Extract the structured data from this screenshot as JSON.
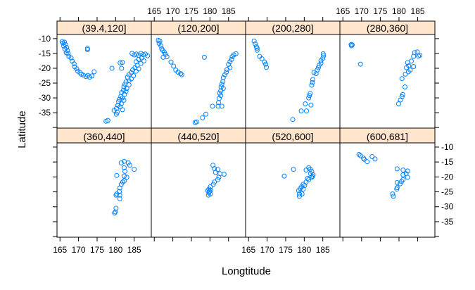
{
  "chart_data": {
    "type": "scatter",
    "title": "",
    "xlabel": "Longtitude",
    "ylabel": "Latitude",
    "xlim": [
      164.2,
      189.6
    ],
    "ylim": [
      -40.2,
      -8.6
    ],
    "xticks": [
      165,
      170,
      175,
      180,
      185
    ],
    "yticks": [
      -10,
      -15,
      -20,
      -25,
      -30,
      -35,
      -40
    ],
    "ytick_labels": [
      "-10",
      "-15",
      "-20",
      "-25",
      "-30",
      "-35",
      ""
    ],
    "point_color": "#0080ff",
    "strip_color": "#ffe5cc",
    "panels": [
      {
        "label": "(39.4,120]",
        "points": [
          [
            165.6,
            -11
          ],
          [
            165.8,
            -11.5
          ],
          [
            166.2,
            -11.2
          ],
          [
            166,
            -12.5
          ],
          [
            166.5,
            -12
          ],
          [
            166.8,
            -13
          ],
          [
            166.3,
            -13.5
          ],
          [
            167,
            -14
          ],
          [
            166.7,
            -14.8
          ],
          [
            167.2,
            -15
          ],
          [
            167.4,
            -16
          ],
          [
            168,
            -16.5
          ],
          [
            168.3,
            -17.6
          ],
          [
            168.8,
            -18.5
          ],
          [
            169,
            -19.5
          ],
          [
            169.5,
            -20.2
          ],
          [
            169.8,
            -21
          ],
          [
            170.4,
            -21.5
          ],
          [
            170.8,
            -22
          ],
          [
            171.3,
            -22.3
          ],
          [
            172,
            -22.8
          ],
          [
            172.5,
            -22.4
          ],
          [
            173,
            -23
          ],
          [
            173.6,
            -22.6
          ],
          [
            174.2,
            -21.2
          ],
          [
            172.4,
            -13.3
          ],
          [
            172.4,
            -13.7
          ],
          [
            179,
            -20
          ],
          [
            181.6,
            -20
          ],
          [
            181.2,
            -18.2
          ],
          [
            181.8,
            -18
          ],
          [
            184.4,
            -15
          ],
          [
            185,
            -15.5
          ],
          [
            185.6,
            -15.2
          ],
          [
            186.2,
            -15.6
          ],
          [
            186.8,
            -15
          ],
          [
            187.4,
            -15.4
          ],
          [
            188,
            -15.2
          ],
          [
            188.6,
            -15.8
          ],
          [
            187,
            -16.5
          ],
          [
            186.2,
            -17
          ],
          [
            185.5,
            -17.8
          ],
          [
            187.6,
            -17.5
          ],
          [
            186.8,
            -18.4
          ],
          [
            185.8,
            -19
          ],
          [
            185.2,
            -19.8
          ],
          [
            184.6,
            -20.5
          ],
          [
            186.2,
            -20.2
          ],
          [
            185.5,
            -21
          ],
          [
            184.2,
            -21.5
          ],
          [
            183.6,
            -22.2
          ],
          [
            184.8,
            -22.5
          ],
          [
            183.2,
            -23
          ],
          [
            184.2,
            -23.6
          ],
          [
            183.6,
            -24.2
          ],
          [
            182.8,
            -24.6
          ],
          [
            182.5,
            -25.4
          ],
          [
            183.6,
            -25.6
          ],
          [
            182.2,
            -26.3
          ],
          [
            183,
            -26.8
          ],
          [
            182.1,
            -27.4
          ],
          [
            182.8,
            -27.8
          ],
          [
            181.6,
            -28.2
          ],
          [
            182.4,
            -28.8
          ],
          [
            181.4,
            -29.5
          ],
          [
            181.8,
            -30
          ],
          [
            181,
            -30.5
          ],
          [
            182.2,
            -30.8
          ],
          [
            180.8,
            -31.3
          ],
          [
            181.5,
            -32
          ],
          [
            180.6,
            -32.5
          ],
          [
            181.2,
            -33
          ],
          [
            180.2,
            -33.6
          ],
          [
            181.8,
            -34
          ],
          [
            179.6,
            -34.2
          ],
          [
            180.4,
            -34.8
          ],
          [
            180.2,
            -35.5
          ],
          [
            177.4,
            -37.9
          ],
          [
            177.9,
            -37.6
          ]
        ]
      },
      {
        "label": "(120,200]",
        "points": [
          [
            166.1,
            -10.6
          ],
          [
            166.5,
            -10.8
          ],
          [
            166.3,
            -11.6
          ],
          [
            166.8,
            -12.4
          ],
          [
            167,
            -13.4
          ],
          [
            167.3,
            -14
          ],
          [
            167.7,
            -14.6
          ],
          [
            168,
            -15.3
          ],
          [
            168.4,
            -16.1
          ],
          [
            167.4,
            -16.3
          ],
          [
            169.5,
            -17.9
          ],
          [
            170.2,
            -19.3
          ],
          [
            170.8,
            -20.6
          ],
          [
            171.4,
            -21.3
          ],
          [
            172.4,
            -22.2
          ],
          [
            172.1,
            -21.8
          ],
          [
            178.5,
            -16.3
          ],
          [
            187,
            -15.1
          ],
          [
            186.4,
            -15.5
          ],
          [
            186,
            -16.1
          ],
          [
            185.8,
            -17
          ],
          [
            185.4,
            -17.8
          ],
          [
            185,
            -18.7
          ],
          [
            185.4,
            -19.8
          ],
          [
            184.6,
            -20.4
          ],
          [
            184.4,
            -21.3
          ],
          [
            184,
            -22.2
          ],
          [
            183.6,
            -23.2
          ],
          [
            183.5,
            -24.5
          ],
          [
            183.2,
            -25.4
          ],
          [
            183,
            -26.3
          ],
          [
            183.6,
            -26.8
          ],
          [
            182.9,
            -27.6
          ],
          [
            182.6,
            -28.4
          ],
          [
            182.9,
            -29.2
          ],
          [
            182.5,
            -30.2
          ],
          [
            182.3,
            -31.6
          ],
          [
            180.7,
            -32.8
          ],
          [
            183.2,
            -32.8
          ],
          [
            182.2,
            -32.8
          ],
          [
            178.9,
            -35.5
          ],
          [
            178,
            -36.7
          ],
          [
            176,
            -38.3
          ],
          [
            176.4,
            -38.1
          ]
        ]
      },
      {
        "label": "(200,280]",
        "points": [
          [
            166.5,
            -10.8
          ],
          [
            166.8,
            -11.8
          ],
          [
            167.1,
            -12.7
          ],
          [
            167.3,
            -13.2
          ],
          [
            167.3,
            -13.9
          ],
          [
            168,
            -16
          ],
          [
            168.6,
            -16.8
          ],
          [
            169.3,
            -17.9
          ],
          [
            169.6,
            -18.6
          ],
          [
            169.8,
            -19.7
          ],
          [
            185.1,
            -15.1
          ],
          [
            185.2,
            -15.8
          ],
          [
            185,
            -16.6
          ],
          [
            184.5,
            -17.4
          ],
          [
            184.5,
            -18.3
          ],
          [
            184,
            -19
          ],
          [
            183.8,
            -19.8
          ],
          [
            183.5,
            -20.6
          ],
          [
            182.6,
            -21.4
          ],
          [
            183.2,
            -21.8
          ],
          [
            182.3,
            -23.8
          ],
          [
            182.2,
            -24.8
          ],
          [
            182,
            -25.7
          ],
          [
            181.6,
            -28.5
          ],
          [
            181.4,
            -29.2
          ],
          [
            181.2,
            -30
          ],
          [
            180.3,
            -32
          ],
          [
            181.8,
            -32.4
          ],
          [
            179.2,
            -34.4
          ],
          [
            180.6,
            -34.4
          ],
          [
            176.9,
            -37.3
          ]
        ]
      },
      {
        "label": "(280,360]",
        "points": [
          [
            167.2,
            -12
          ],
          [
            167.5,
            -12.1
          ],
          [
            167.3,
            -12.4
          ],
          [
            169.7,
            -18.6
          ],
          [
            184.2,
            -14.7
          ],
          [
            184.9,
            -14.5
          ],
          [
            185.2,
            -15.9
          ],
          [
            185.6,
            -15.6
          ],
          [
            183.9,
            -16
          ],
          [
            183.3,
            -17.6
          ],
          [
            182.3,
            -18.1
          ],
          [
            182,
            -19.8
          ],
          [
            182.6,
            -19.2
          ],
          [
            183.9,
            -19.4
          ],
          [
            183,
            -20.6
          ],
          [
            182.5,
            -21.2
          ],
          [
            181.7,
            -22
          ],
          [
            180.8,
            -23.5
          ],
          [
            181.6,
            -26.3
          ],
          [
            181,
            -28.9
          ],
          [
            180.8,
            -29.6
          ],
          [
            180.4,
            -30.7
          ],
          [
            179.9,
            -32
          ]
        ]
      },
      {
        "label": "(360,440]",
        "points": [
          [
            182.3,
            -14.8
          ],
          [
            181.5,
            -15.3
          ],
          [
            183.4,
            -15.3
          ],
          [
            183.8,
            -16.1
          ],
          [
            185,
            -17.5
          ],
          [
            182.3,
            -16.9
          ],
          [
            182.5,
            -18.1
          ],
          [
            182.3,
            -19.7
          ],
          [
            180.3,
            -19.5
          ],
          [
            183,
            -20.1
          ],
          [
            182.3,
            -21.3
          ],
          [
            181.9,
            -21.7
          ],
          [
            181.5,
            -22.5
          ],
          [
            181.1,
            -23.7
          ],
          [
            181,
            -24.9
          ],
          [
            180.3,
            -25.7
          ],
          [
            181.1,
            -26.1
          ],
          [
            180.1,
            -26.1
          ],
          [
            181.1,
            -27.3
          ],
          [
            180.1,
            -30.5
          ],
          [
            179.7,
            -32.1
          ],
          [
            179.9,
            -31.7
          ]
        ]
      },
      {
        "label": "(440,520]",
        "points": [
          [
            180.8,
            -16.1
          ],
          [
            181.2,
            -17.2
          ],
          [
            182.1,
            -17.5
          ],
          [
            181.5,
            -18.5
          ],
          [
            182.7,
            -18.9
          ],
          [
            183.8,
            -19.1
          ],
          [
            182.4,
            -20.1
          ],
          [
            182.1,
            -20.9
          ],
          [
            181.2,
            -21.7
          ],
          [
            180.9,
            -22.5
          ],
          [
            180.1,
            -23.3
          ],
          [
            179.7,
            -24.1
          ],
          [
            179.4,
            -24.6
          ],
          [
            179.7,
            -25.3
          ],
          [
            179.6,
            -26.1
          ],
          [
            180.1,
            -25.7
          ],
          [
            179.9,
            -24.8
          ],
          [
            180.2,
            -24.4
          ]
        ]
      },
      {
        "label": "(520,600]",
        "points": [
          [
            174.6,
            -19.7
          ],
          [
            177.1,
            -17.5
          ],
          [
            181.2,
            -16.9
          ],
          [
            180.5,
            -17.7
          ],
          [
            182,
            -18.1
          ],
          [
            182.4,
            -19.3
          ],
          [
            182,
            -20.1
          ],
          [
            181.2,
            -20.9
          ],
          [
            180.5,
            -21.7
          ],
          [
            179.7,
            -22.5
          ],
          [
            179.3,
            -23.3
          ],
          [
            178.9,
            -23.9
          ],
          [
            178.5,
            -24.6
          ],
          [
            179.7,
            -24.1
          ],
          [
            178.7,
            -25.7
          ],
          [
            179.4,
            -25.7
          ],
          [
            178.7,
            -26.5
          ],
          [
            181.7,
            -18.9
          ],
          [
            180.9,
            -20.5
          ],
          [
            180.1,
            -22.9
          ],
          [
            181.6,
            -17.4
          ],
          [
            182.2,
            -19.8
          ]
        ]
      },
      {
        "label": "(600,681]",
        "points": [
          [
            169.3,
            -12.5
          ],
          [
            169.7,
            -12.9
          ],
          [
            170.5,
            -13.7
          ],
          [
            170.7,
            -14.1
          ],
          [
            171.5,
            -14.9
          ],
          [
            172.8,
            -13.2
          ],
          [
            173.6,
            -14
          ],
          [
            179.5,
            -17.3
          ],
          [
            181.1,
            -17.7
          ],
          [
            182.3,
            -18
          ],
          [
            181.9,
            -18.9
          ],
          [
            181.1,
            -19.3
          ],
          [
            182.3,
            -20.1
          ],
          [
            181.1,
            -20.9
          ],
          [
            180.7,
            -21.5
          ],
          [
            179.5,
            -21.9
          ],
          [
            180.3,
            -22.3
          ],
          [
            179.5,
            -23.6
          ],
          [
            179.4,
            -24.1
          ],
          [
            178.3,
            -25.7
          ],
          [
            178.5,
            -26.5
          ]
        ]
      }
    ]
  }
}
